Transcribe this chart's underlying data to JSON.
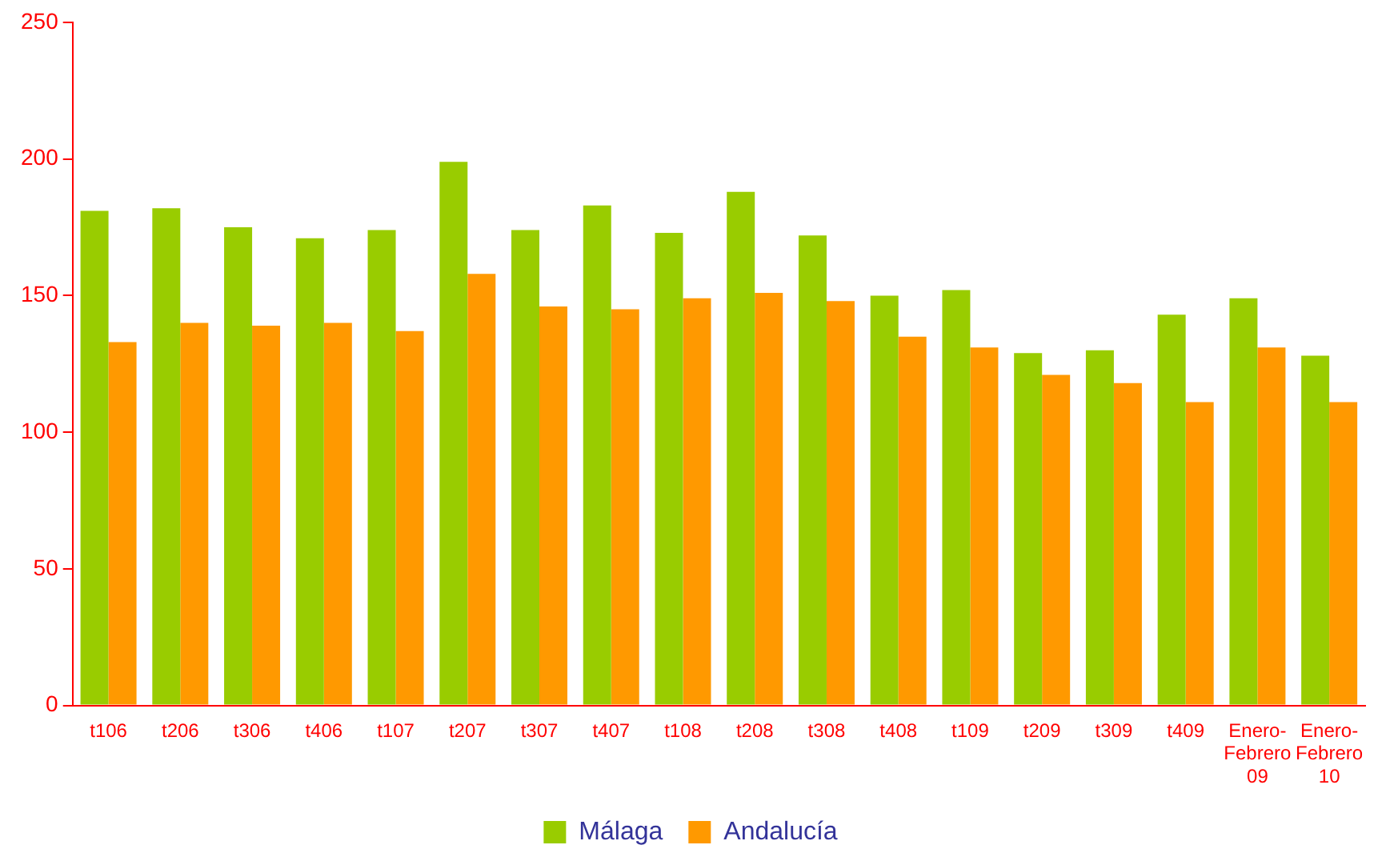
{
  "chart_data": {
    "type": "bar",
    "categories": [
      "t106",
      "t206",
      "t306",
      "t406",
      "t107",
      "t207",
      "t307",
      "t407",
      "t108",
      "t208",
      "t308",
      "t408",
      "t109",
      "t209",
      "t309",
      "t409",
      "Enero-Febrero 09",
      "Enero-Febrero 10"
    ],
    "series": [
      {
        "name": "Málaga",
        "color": "#99cc00",
        "values": [
          181,
          182,
          175,
          171,
          174,
          199,
          174,
          183,
          173,
          188,
          172,
          150,
          152,
          129,
          130,
          143,
          149,
          128
        ]
      },
      {
        "name": "Andalucía",
        "color": "#ff9900",
        "values": [
          133,
          140,
          139,
          140,
          137,
          158,
          146,
          145,
          149,
          151,
          148,
          135,
          131,
          121,
          118,
          111,
          131,
          111
        ]
      }
    ],
    "ylim": [
      0,
      250
    ],
    "yticks": [
      0,
      50,
      100,
      150,
      200,
      250
    ],
    "grid": false,
    "legend": "bottom"
  }
}
